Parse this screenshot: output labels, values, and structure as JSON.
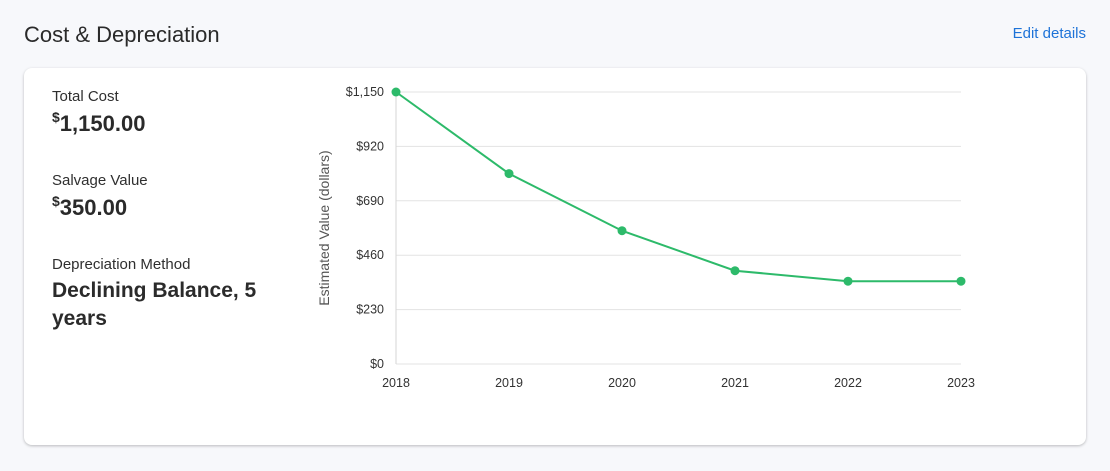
{
  "header": {
    "title": "Cost & Depreciation",
    "edit_label": "Edit details"
  },
  "details": {
    "total_cost": {
      "label": "Total Cost",
      "currency": "$",
      "amount": "1,150.00"
    },
    "salvage_value": {
      "label": "Salvage Value",
      "currency": "$",
      "amount": "350.00"
    },
    "depreciation_method": {
      "label": "Depreciation Method",
      "value": "Declining Balance, 5 years"
    }
  },
  "colors": {
    "accent": "#1e73d8",
    "series": "#2dba6a"
  },
  "chart_data": {
    "type": "line",
    "x": [
      "2018",
      "2019",
      "2020",
      "2021",
      "2022",
      "2023"
    ],
    "series": [
      {
        "values": [
          1150,
          805,
          563.5,
          394.45,
          350,
          350
        ]
      }
    ],
    "ylabel": "Estimated Value (dollars)",
    "ylim": [
      0,
      1150
    ],
    "yticks": [
      0,
      230,
      460,
      690,
      920,
      1150
    ],
    "ytick_labels": [
      "$0",
      "$230",
      "$460",
      "$690",
      "$920",
      "$1,150"
    ],
    "grid": true
  }
}
